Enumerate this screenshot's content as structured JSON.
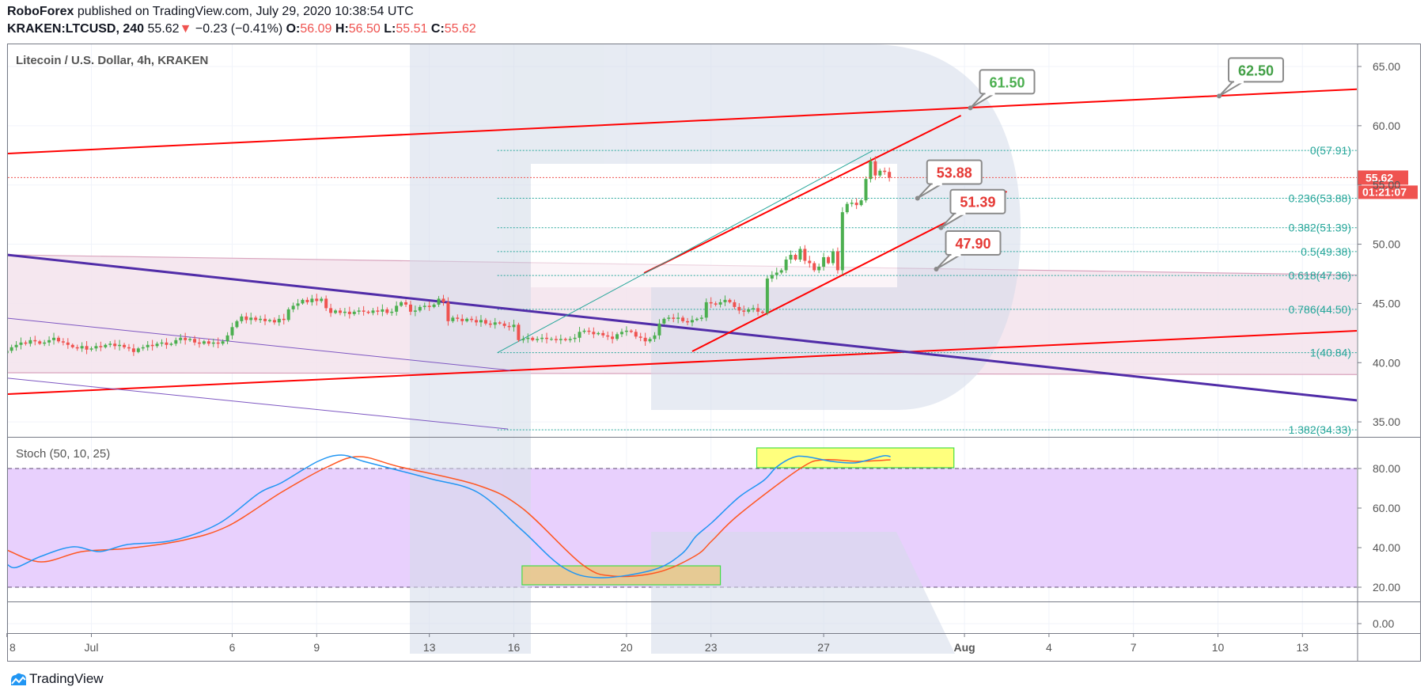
{
  "header": {
    "publisher": "RoboForex",
    "published_text": " published on TradingView.com, July 29, 2020 10:38:54 UTC",
    "symbol": "KRAKEN:LTCUSD, 240",
    "last": "55.62",
    "change": "−0.23 (−0.41%)",
    "o_label": "O:",
    "o": "56.09",
    "h_label": "H:",
    "h": "56.50",
    "l_label": "L:",
    "l": "55.51",
    "c_label": "C:",
    "c": "55.62"
  },
  "footer": {
    "brand": "TradingView"
  },
  "colors": {
    "up": "#4caf50",
    "down": "#ef5350",
    "channel_red": "#ff0000",
    "trend_purple": "#512da8",
    "fib": "#26a69a",
    "stoch_k": "#2196f3",
    "stoch_d": "#ff5722",
    "stoch_band": "#e8d0fd",
    "callout_green": "#4caf50",
    "callout_red": "#e53935",
    "highlight_yellow": "#ffff70",
    "highlight_tan": "#e8c98a"
  },
  "chart_data": {
    "type": "candlestick",
    "title": "Litecoin / U.S. Dollar, 4h, KRAKEN",
    "interval": "240",
    "price_axis": {
      "ylim": [
        33.5,
        66.2
      ],
      "ticks": [
        "65.00",
        "60.00",
        "55.00",
        "50.00",
        "45.00",
        "40.00",
        "35.00"
      ]
    },
    "time_axis": [
      {
        "label": "8",
        "date": "2020-06-28"
      },
      {
        "label": "Jul",
        "date": "2020-07-01"
      },
      {
        "label": "6",
        "date": "2020-07-06"
      },
      {
        "label": "9",
        "date": "2020-07-09"
      },
      {
        "label": "13",
        "date": "2020-07-13"
      },
      {
        "label": "16",
        "date": "2020-07-16"
      },
      {
        "label": "20",
        "date": "2020-07-20"
      },
      {
        "label": "23",
        "date": "2020-07-23"
      },
      {
        "label": "27",
        "date": "2020-07-27"
      },
      {
        "label": "Aug",
        "date": "2020-08-01"
      },
      {
        "label": "4",
        "date": "2020-08-04"
      },
      {
        "label": "7",
        "date": "2020-08-07"
      },
      {
        "label": "10",
        "date": "2020-08-10"
      },
      {
        "label": "13",
        "date": "2020-08-13"
      }
    ],
    "closes_by_day": {
      "2020-06-28": [
        41.0,
        41.3,
        41.5,
        41.7,
        41.6,
        41.9
      ],
      "2020-06-29": [
        41.8,
        41.6,
        41.7,
        41.9,
        42.1,
        41.8
      ],
      "2020-06-30": [
        41.7,
        41.5,
        41.3,
        41.2,
        41.4,
        41.1
      ],
      "2020-07-01": [
        41.2,
        41.4,
        41.3,
        41.5,
        41.6,
        41.4
      ],
      "2020-07-02": [
        41.5,
        41.3,
        41.2,
        40.9,
        41.2,
        41.3
      ],
      "2020-07-03": [
        41.5,
        41.4,
        41.6,
        41.7,
        41.5,
        41.6
      ],
      "2020-07-04": [
        41.9,
        42.1,
        41.9,
        42.0,
        41.7,
        41.6
      ],
      "2020-07-05": [
        41.8,
        41.6,
        41.7,
        41.6,
        41.8,
        42.3
      ],
      "2020-07-06": [
        43.0,
        43.5,
        43.9,
        43.6,
        43.8,
        43.6
      ],
      "2020-07-07": [
        43.7,
        43.5,
        43.6,
        43.4,
        43.7,
        43.6
      ],
      "2020-07-08": [
        44.5,
        44.8,
        45.0,
        45.3,
        45.1,
        45.4
      ],
      "2020-07-09": [
        45.2,
        45.4,
        44.6,
        44.2,
        44.4,
        44.2
      ],
      "2020-07-10": [
        44.3,
        44.1,
        44.3,
        44.4,
        44.3,
        44.2
      ],
      "2020-07-11": [
        44.4,
        44.3,
        44.5,
        44.2,
        44.3,
        44.8
      ],
      "2020-07-12": [
        45.1,
        44.9,
        44.3,
        44.4,
        44.7,
        44.8
      ],
      "2020-07-13": [
        44.7,
        44.9,
        45.4,
        45.1,
        43.5,
        43.8
      ],
      "2020-07-14": [
        43.7,
        43.5,
        43.7,
        43.6,
        43.4,
        43.6
      ],
      "2020-07-15": [
        43.3,
        43.2,
        43.4,
        43.3,
        43.1,
        43.0
      ],
      "2020-07-16": [
        43.2,
        41.9,
        42.0,
        42.1,
        41.9,
        42.0
      ],
      "2020-07-17": [
        42.1,
        42.0,
        42.0,
        41.9,
        42.0,
        41.9
      ],
      "2020-07-18": [
        42.0,
        42.1,
        42.6,
        42.7,
        42.6,
        42.4
      ],
      "2020-07-19": [
        42.5,
        42.3,
        42.2,
        42.0,
        42.4,
        42.6
      ],
      "2020-07-20": [
        42.7,
        42.6,
        42.2,
        42.1,
        41.8,
        42.0
      ],
      "2020-07-21": [
        42.3,
        43.3,
        43.7,
        43.8,
        43.7,
        43.8
      ],
      "2020-07-22": [
        43.5,
        43.4,
        43.6,
        43.7,
        43.8,
        45.1
      ],
      "2020-07-23": [
        45.0,
        44.9,
        45.1,
        45.3,
        45.1,
        44.7
      ],
      "2020-07-24": [
        44.4,
        44.3,
        44.5,
        44.6,
        44.3,
        44.2
      ],
      "2020-07-25": [
        47.1,
        47.4,
        47.6,
        47.8,
        48.7,
        49.1
      ],
      "2020-07-26": [
        48.7,
        49.6,
        48.6,
        48.4,
        47.8,
        48.1
      ],
      "2020-07-27": [
        48.9,
        48.4,
        49.4,
        47.8,
        52.7,
        53.4
      ],
      "2020-07-28": [
        53.5,
        53.3,
        53.7,
        55.5,
        57.0,
        55.8
      ],
      "2020-07-29": [
        56.2,
        56.1,
        55.62
      ]
    },
    "last_price": {
      "value": 55.62,
      "label": "55.62",
      "countdown": "01:21:07"
    },
    "trend_lines": [
      {
        "name": "channel-upper-red",
        "color": "#ff0000",
        "width": 2,
        "from": [
          "2020-06-28 00:00",
          57.65
        ],
        "to": [
          "2020-08-15 00:00",
          63.09
        ]
      },
      {
        "name": "channel-lower-red",
        "color": "#ff0000",
        "width": 2,
        "from": [
          "2020-06-28 00:00",
          37.34
        ],
        "to": [
          "2020-08-15 00:00",
          42.7
        ]
      },
      {
        "name": "downtrend-purple",
        "color": "#512da8",
        "width": 3,
        "from": [
          "2020-06-28 00:00",
          49.1
        ],
        "to": [
          "2020-08-15 00:00",
          36.8
        ]
      },
      {
        "name": "parallel-purple-1",
        "color": "#7e57c2",
        "width": 1,
        "from": [
          "2020-06-28 00:00",
          43.76
        ],
        "to": [
          "2020-07-15 21:00",
          39.35
        ]
      },
      {
        "name": "parallel-purple-2",
        "color": "#7e57c2",
        "width": 1,
        "from": [
          "2020-06-28 00:00",
          38.7
        ],
        "to": [
          "2020-07-15 19:00",
          34.4
        ]
      },
      {
        "name": "rising-channel-upper",
        "color": "#ff0000",
        "width": 2,
        "from": [
          "2020-07-20 15:00",
          47.56
        ],
        "to": [
          "2020-07-31 21:00",
          60.86
        ]
      },
      {
        "name": "rising-channel-lower",
        "color": "#ff0000",
        "width": 2,
        "from": [
          "2020-07-22 08:00",
          40.95
        ],
        "to": [
          "2020-08-02 12:00",
          54.45
        ]
      },
      {
        "name": "fib-trend-teal",
        "color": "#26a69a",
        "width": 1,
        "from": [
          "2020-07-15 10:00",
          40.84
        ],
        "to": [
          "2020-07-28 18:00",
          57.91
        ]
      }
    ],
    "zone": {
      "top_from": [
        "2020-06-28 00:00",
        49.1
      ],
      "top_to": [
        "2020-08-15 00:00",
        47.4
      ],
      "bottom_from": [
        "2020-06-28 00:00",
        39.15
      ],
      "bottom_to": [
        "2020-08-15 00:00",
        39.0
      ]
    },
    "fibonacci": {
      "start": "2020-07-15 10:00",
      "levels": [
        {
          "price": 57.91,
          "label": "0(57.91)"
        },
        {
          "price": 53.88,
          "label": "0.236(53.88)"
        },
        {
          "price": 51.39,
          "label": "0.382(51.39)"
        },
        {
          "price": 49.38,
          "label": "0.5(49.38)"
        },
        {
          "price": 47.36,
          "label": "0.618(47.36)"
        },
        {
          "price": 44.5,
          "label": "0.786(44.50)"
        },
        {
          "price": 40.84,
          "label": "1(40.84)"
        },
        {
          "price": 34.33,
          "label": "1.382(34.33)"
        }
      ]
    },
    "callouts": [
      {
        "label": "61.50",
        "time": "2020-08-01 05:00",
        "price": 61.5,
        "color": "#4caf50"
      },
      {
        "label": "62.50",
        "time": "2020-08-10 01:00",
        "price": 62.5,
        "color": "#43a047"
      },
      {
        "label": "53.88",
        "time": "2020-07-30 08:00",
        "price": 53.88,
        "color": "#e53935"
      },
      {
        "label": "51.39",
        "time": "2020-07-31 04:00",
        "price": 51.39,
        "color": "#e53935"
      },
      {
        "label": "47.90",
        "time": "2020-07-31 00:00",
        "price": 47.9,
        "color": "#e53935"
      }
    ],
    "stochastic": {
      "title": "Stoch (50, 10, 25)",
      "ticks": [
        "80.00",
        "60.00",
        "40.00",
        "20.00"
      ],
      "zero_pane_tick": "0.00",
      "band": [
        20,
        80
      ],
      "k": [
        [
          "2020-06-28 00:00",
          31.6
        ],
        [
          "2020-06-28 08:00",
          30
        ],
        [
          "2020-06-29 05:00",
          35.6
        ],
        [
          "2020-06-30 08:00",
          40.4
        ],
        [
          "2020-07-01 07:00",
          38
        ],
        [
          "2020-07-02 07:00",
          41.6
        ],
        [
          "2020-07-03 21:00",
          43.6
        ],
        [
          "2020-07-05 12:00",
          52
        ],
        [
          "2020-07-06 23:00",
          67.6
        ],
        [
          "2020-07-07 18:00",
          72.8
        ],
        [
          "2020-07-09 01:00",
          83.6
        ],
        [
          "2020-07-09 21:00",
          86.8
        ],
        [
          "2020-07-10 16:00",
          83.6
        ],
        [
          "2020-07-11 18:00",
          79.6
        ],
        [
          "2020-07-13 01:00",
          74.8
        ],
        [
          "2020-07-14 17:00",
          68
        ],
        [
          "2020-07-16 07:00",
          48.8
        ],
        [
          "2020-07-17 18:00",
          30
        ],
        [
          "2020-07-19 01:00",
          24.8
        ],
        [
          "2020-07-20 23:00",
          28.8
        ],
        [
          "2020-07-21 23:00",
          36.8
        ],
        [
          "2020-07-22 11:00",
          45.6
        ],
        [
          "2020-07-23 01:00",
          52.8
        ],
        [
          "2020-07-24 00:00",
          65.6
        ],
        [
          "2020-07-24 21:00",
          74
        ],
        [
          "2020-07-25 08:00",
          80.8
        ],
        [
          "2020-07-25 22:00",
          85.6
        ],
        [
          "2020-07-26 09:00",
          86
        ],
        [
          "2020-07-27 07:00",
          83.6
        ],
        [
          "2020-07-28 01:00",
          82.8
        ],
        [
          "2020-07-28 12:00",
          84
        ],
        [
          "2020-07-29 03:00",
          86.4
        ],
        [
          "2020-07-29 09:00",
          86
        ]
      ],
      "d": [
        [
          "2020-06-28 00:00",
          38.8
        ],
        [
          "2020-06-29 05:00",
          32.8
        ],
        [
          "2020-06-30 16:00",
          38
        ],
        [
          "2020-07-02 07:00",
          39.6
        ],
        [
          "2020-07-04 05:00",
          43.6
        ],
        [
          "2020-07-05 20:00",
          50.8
        ],
        [
          "2020-07-07 18:00",
          68
        ],
        [
          "2020-07-09 09:00",
          80.8
        ],
        [
          "2020-07-10 12:00",
          86
        ],
        [
          "2020-07-11 23:00",
          80.8
        ],
        [
          "2020-07-14 17:00",
          71.6
        ],
        [
          "2020-07-16 07:00",
          60
        ],
        [
          "2020-07-18 10:00",
          31.6
        ],
        [
          "2020-07-19 13:00",
          25.6
        ],
        [
          "2020-07-21 03:00",
          27.6
        ],
        [
          "2020-07-22 11:00",
          36
        ],
        [
          "2020-07-23 01:00",
          43.6
        ],
        [
          "2020-07-24 00:00",
          56.8
        ],
        [
          "2020-07-26 04:00",
          80
        ],
        [
          "2020-07-27 00:00",
          84.4
        ],
        [
          "2020-07-28 05:00",
          83.6
        ],
        [
          "2020-07-29 09:00",
          84.4
        ]
      ],
      "highlights": [
        {
          "name": "overbought-box",
          "from": [
            "2020-07-24 15:00",
            90.4
          ],
          "to": [
            "2020-07-31 15:00",
            80.4
          ],
          "fill": "#ffff70"
        },
        {
          "name": "oversold-box",
          "from": [
            "2020-07-16 07:00",
            30.8
          ],
          "to": [
            "2020-07-23 08:00",
            21.2
          ],
          "fill": "#e8c98a"
        }
      ]
    }
  }
}
